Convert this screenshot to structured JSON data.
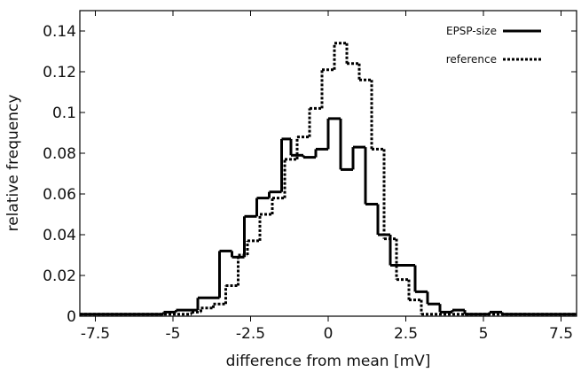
{
  "chart_data": {
    "type": "line",
    "step": "histogram",
    "xlabel": "difference from mean [mV]",
    "ylabel": "relative frequency",
    "xlim": [
      -8,
      8
    ],
    "ylim": [
      0,
      0.15
    ],
    "x_ticks": [
      -7.5,
      -5,
      -2.5,
      0,
      2.5,
      5,
      7.5
    ],
    "x_tick_labels": [
      "-7.5",
      "-5",
      "-2.5",
      "0",
      "2.5",
      "5",
      "7.5"
    ],
    "y_ticks": [
      0,
      0.02,
      0.04,
      0.06,
      0.08,
      0.1,
      0.12,
      0.14
    ],
    "y_tick_labels": [
      "0",
      "0.02",
      "0.04",
      "0.06",
      "0.08",
      "0.1",
      "0.12",
      "0.14"
    ],
    "grid": false,
    "legend_position": "top-right",
    "series": [
      {
        "name": "EPSP-size",
        "style": "solid",
        "color": "#000000",
        "edges": [
          -8.0,
          -5.3,
          -4.9,
          -4.2,
          -3.5,
          -3.1,
          -2.7,
          -2.3,
          -1.9,
          -1.5,
          -1.2,
          -0.8,
          -0.4,
          0.0,
          0.4,
          0.8,
          1.2,
          1.6,
          2.0,
          2.4,
          2.8,
          3.2,
          3.6,
          4.0,
          4.4,
          4.8,
          5.2,
          5.6,
          6.0,
          6.4,
          8.0
        ],
        "values": [
          0.001,
          0.002,
          0.003,
          0.009,
          0.032,
          0.029,
          0.049,
          0.058,
          0.061,
          0.087,
          0.079,
          0.078,
          0.082,
          0.097,
          0.072,
          0.083,
          0.055,
          0.04,
          0.025,
          0.025,
          0.012,
          0.006,
          0.002,
          0.003,
          0.001,
          0.001,
          0.002,
          0.001,
          0.001,
          0.001
        ]
      },
      {
        "name": "reference",
        "style": "dotted",
        "color": "#000000",
        "edges": [
          -8.0,
          -4.4,
          -4.1,
          -3.7,
          -3.3,
          -2.9,
          -2.6,
          -2.2,
          -1.8,
          -1.4,
          -1.0,
          -0.6,
          -0.2,
          0.2,
          0.6,
          1.0,
          1.4,
          1.8,
          2.2,
          2.6,
          3.0,
          8.0
        ],
        "values": [
          0.001,
          0.002,
          0.004,
          0.006,
          0.015,
          0.03,
          0.037,
          0.05,
          0.058,
          0.077,
          0.088,
          0.102,
          0.121,
          0.134,
          0.124,
          0.116,
          0.082,
          0.038,
          0.018,
          0.008,
          0.001
        ]
      }
    ]
  }
}
